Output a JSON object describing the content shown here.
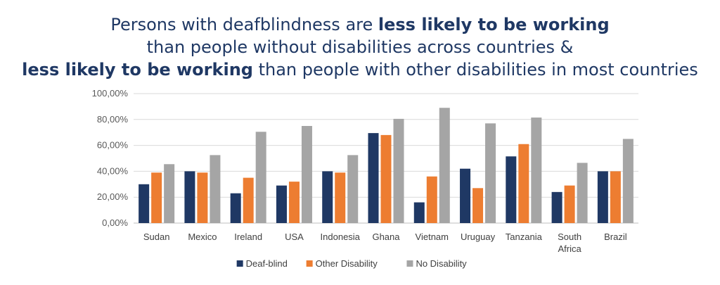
{
  "title": {
    "line1_pre": "Persons with deafblindness are ",
    "line1_bold": "less likely to be working",
    "line2": "than people without disabilities across countries &",
    "line3_bold": "less likely to be working",
    "line3_post": " than people with other disabilities in most countries"
  },
  "chart_data": {
    "type": "bar",
    "categories": [
      "Sudan",
      "Mexico",
      "Ireland",
      "USA",
      "Indonesia",
      "Ghana",
      "Vietnam",
      "Uruguay",
      "Tanzania",
      "South Africa",
      "Brazil"
    ],
    "category_lines": [
      [
        "Sudan"
      ],
      [
        "Mexico"
      ],
      [
        "Ireland"
      ],
      [
        "USA"
      ],
      [
        "Indonesia"
      ],
      [
        "Ghana"
      ],
      [
        "Vietnam"
      ],
      [
        "Uruguay"
      ],
      [
        "Tanzania"
      ],
      [
        "South",
        "Africa"
      ],
      [
        "Brazil"
      ]
    ],
    "series": [
      {
        "name": "Deaf-blind",
        "color": "#1F3864",
        "values": [
          30,
          40,
          23,
          29,
          40,
          69.5,
          16,
          42,
          51.5,
          24,
          40
        ]
      },
      {
        "name": "Other Disability",
        "color": "#ED7D31",
        "values": [
          39,
          39,
          35,
          32,
          39,
          68,
          36,
          27,
          61,
          29,
          40
        ]
      },
      {
        "name": "No Disability",
        "color": "#A5A5A5",
        "values": [
          45.5,
          52.5,
          70.5,
          75,
          52.5,
          80.5,
          89,
          77,
          81.5,
          46.5,
          65
        ]
      }
    ],
    "ylim": [
      0,
      100
    ],
    "yticks": [
      0,
      20,
      40,
      60,
      80,
      100
    ],
    "ytick_labels": [
      "0,00%",
      "20,00%",
      "40,00%",
      "60,00%",
      "80,00%",
      "100,00%"
    ],
    "grid": true,
    "legend": "bottom"
  }
}
